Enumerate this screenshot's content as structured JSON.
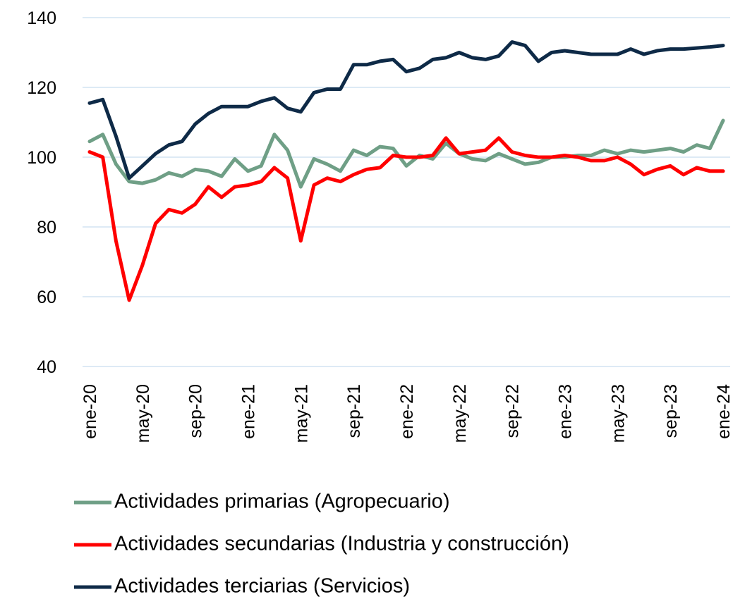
{
  "chart_data": {
    "type": "line",
    "categories": [
      "ene-20",
      null,
      null,
      null,
      "may-20",
      null,
      null,
      null,
      "sep-20",
      null,
      null,
      null,
      "ene-21",
      null,
      null,
      null,
      "may-21",
      null,
      null,
      null,
      "sep-21",
      null,
      null,
      null,
      "ene-22",
      null,
      null,
      null,
      "may-22",
      null,
      null,
      null,
      "sep-22",
      null,
      null,
      null,
      "ene-23",
      null,
      null,
      null,
      "may-23",
      null,
      null,
      null,
      "sep-23",
      null,
      null,
      null,
      "ene-24"
    ],
    "series": [
      {
        "name": "Actividades primarias (Agropecuario)",
        "color": "#6f9f86",
        "values": [
          104.5,
          106.5,
          98,
          93,
          92.5,
          93.5,
          95.5,
          94.5,
          96.5,
          96,
          94.5,
          99.5,
          96,
          97.5,
          106.5,
          102,
          91.5,
          99.5,
          98,
          96,
          102,
          100.5,
          103,
          102.5,
          97.5,
          100.5,
          99.5,
          104,
          101,
          99.5,
          99,
          101,
          99.5,
          98,
          98.5,
          100,
          100,
          100.5,
          100.5,
          102,
          101,
          102,
          101.5,
          102,
          102.5,
          101.5,
          103.5,
          102.5,
          110.5
        ]
      },
      {
        "name": "Actividades secundarias (Industria y construcción)",
        "color": "#ff0000",
        "values": [
          101.5,
          100,
          76,
          59,
          69,
          81,
          85,
          84,
          86.5,
          91.5,
          88.5,
          91.5,
          92,
          93,
          97,
          94,
          76,
          92,
          94,
          93,
          95,
          96.5,
          97,
          100.5,
          100,
          100,
          100.5,
          105.5,
          101,
          101.5,
          102,
          105.5,
          101.5,
          100.5,
          100,
          100,
          100.5,
          100,
          99,
          99,
          100,
          98,
          95,
          96.5,
          97.5,
          95,
          97,
          96,
          96
        ]
      },
      {
        "name": "Actividades terciarias (Servicios)",
        "color": "#0e2a47",
        "values": [
          115.5,
          116.5,
          106,
          94,
          97.5,
          101,
          103.5,
          104.5,
          109.5,
          112.5,
          114.5,
          114.5,
          114.5,
          116,
          117,
          114,
          113,
          118.5,
          119.5,
          119.5,
          126.5,
          126.5,
          127.5,
          128,
          124.5,
          125.5,
          128,
          128.5,
          130,
          128.5,
          128,
          129,
          133,
          132,
          127.5,
          130,
          130.5,
          130,
          129.5,
          129.5,
          129.5,
          131,
          129.5,
          130.5,
          131,
          131,
          131.3,
          131.6,
          132
        ]
      }
    ],
    "ylim": [
      40,
      140
    ],
    "yticks": [
      40,
      60,
      80,
      100,
      120,
      140
    ],
    "grid": true
  }
}
